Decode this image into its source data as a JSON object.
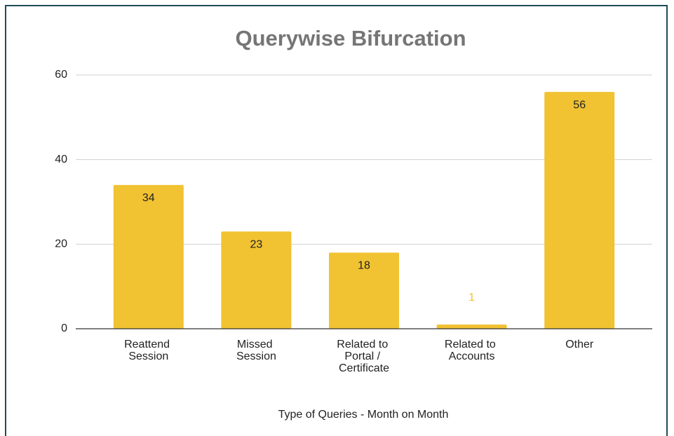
{
  "chart_data": {
    "type": "bar",
    "title": "Querywise Bifurcation",
    "x_label": "Type of Queries - Month on Month",
    "categories": [
      "Reattend Session",
      "Missed Session",
      "Related to Portal / Certificate",
      "Related to Accounts",
      "Other"
    ],
    "values": [
      34,
      23,
      18,
      1,
      56
    ],
    "color": "#f1c232",
    "ylim": [
      0,
      60
    ],
    "yticks": [
      0,
      20,
      40,
      60
    ],
    "grid": true
  }
}
